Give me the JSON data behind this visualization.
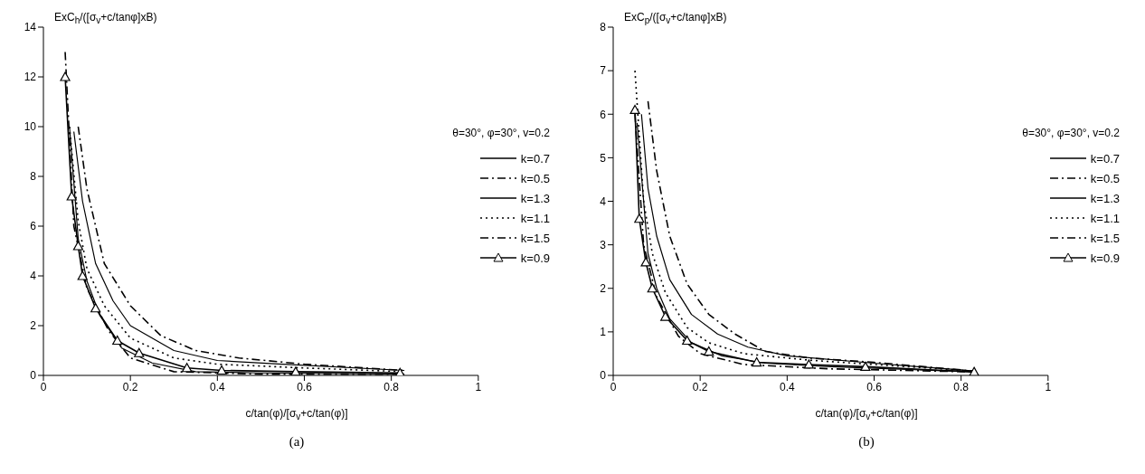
{
  "chart_data": [
    {
      "type": "line",
      "ylabel": "ExC$_{h}$/([σ$_{v}$+c/tanφ]xB)",
      "xlabel": "c/tan(φ)/[σ$_{v}$+c/tan(φ)]",
      "annotations": [
        "θ=30°, φ=30°, v=0.2",
        "(a)"
      ],
      "xlim": [
        0,
        1
      ],
      "xticks": [
        0,
        0.2,
        0.4,
        0.6,
        0.8,
        1
      ],
      "ylim": [
        0,
        14
      ],
      "yticks": [
        0,
        2,
        4,
        6,
        8,
        10,
        12,
        14
      ],
      "grid": false,
      "legend": "right",
      "series": [
        {
          "name": "k=0.7",
          "color": "#000000",
          "line_style": "solid",
          "marker": "none",
          "x": [
            0.06,
            0.08,
            0.1,
            0.13,
            0.18,
            0.25,
            0.35,
            0.5,
            0.83
          ],
          "values": [
            10,
            5.5,
            3.8,
            2.4,
            1.1,
            0.5,
            0.15,
            0.1,
            0.05
          ]
        },
        {
          "name": "k=0.5",
          "color": "#000000",
          "line_style": "dashed",
          "marker": "none",
          "x": [
            0.05,
            0.07,
            0.1,
            0.15,
            0.2,
            0.3,
            0.5,
            0.83
          ],
          "values": [
            13,
            6,
            3.5,
            1.8,
            0.7,
            0.15,
            0.05,
            0.05
          ]
        },
        {
          "name": "k=1.3",
          "color": "#000000",
          "line_style": "solid",
          "marker": "none",
          "x": [
            0.07,
            0.09,
            0.12,
            0.16,
            0.2,
            0.3,
            0.4,
            0.55,
            0.83
          ],
          "values": [
            9.8,
            7,
            4.5,
            3,
            2,
            1,
            0.6,
            0.45,
            0.2
          ]
        },
        {
          "name": "k=1.1",
          "color": "#000000",
          "line_style": "dotted",
          "marker": "none",
          "x": [
            0.06,
            0.08,
            0.1,
            0.14,
            0.2,
            0.3,
            0.4,
            0.6,
            0.83
          ],
          "values": [
            10,
            6.2,
            4.3,
            2.8,
            1.5,
            0.7,
            0.45,
            0.3,
            0.15
          ]
        },
        {
          "name": "k=1.5",
          "color": "#000000",
          "line_style": "dashed",
          "marker": "none",
          "x": [
            0.08,
            0.1,
            0.14,
            0.2,
            0.27,
            0.35,
            0.45,
            0.6,
            0.83
          ],
          "values": [
            10,
            7.5,
            4.5,
            2.8,
            1.6,
            1,
            0.7,
            0.45,
            0.2
          ]
        },
        {
          "name": "k=0.9",
          "color": "#000000",
          "line_style": "solid",
          "marker": "triangle",
          "x": [
            0.05,
            0.065,
            0.08,
            0.09,
            0.12,
            0.17,
            0.22,
            0.33,
            0.41,
            0.58,
            0.82
          ],
          "values": [
            12,
            7.2,
            5.2,
            4,
            2.7,
            1.4,
            0.9,
            0.3,
            0.2,
            0.15,
            0.1
          ]
        }
      ]
    },
    {
      "type": "line",
      "ylabel": "ExC$_{p}$/([σ$_{v}$+c/tanφ]xB)",
      "xlabel": "c/tan(φ)/[σ$_{v}$+c/tan(φ)]",
      "annotations": [
        "θ=30°, φ=30°, v=0.2",
        "(b)"
      ],
      "xlim": [
        0,
        1
      ],
      "xticks": [
        0,
        0.2,
        0.4,
        0.6,
        0.8,
        1
      ],
      "ylim": [
        0,
        8
      ],
      "yticks": [
        0,
        1,
        2,
        3,
        4,
        5,
        6,
        7,
        8
      ],
      "grid": false,
      "legend": "right",
      "series": [
        {
          "name": "k=0.7",
          "color": "#000000",
          "line_style": "solid",
          "marker": "none",
          "x": [
            0.055,
            0.08,
            0.1,
            0.13,
            0.18,
            0.25,
            0.35,
            0.5,
            0.83
          ],
          "values": [
            5.8,
            2.8,
            2,
            1.3,
            0.75,
            0.45,
            0.28,
            0.2,
            0.08
          ]
        },
        {
          "name": "k=0.5",
          "color": "#000000",
          "line_style": "dashed",
          "marker": "none",
          "x": [
            0.05,
            0.07,
            0.1,
            0.15,
            0.2,
            0.3,
            0.5,
            0.83
          ],
          "values": [
            6,
            3,
            1.8,
            0.9,
            0.5,
            0.25,
            0.15,
            0.08
          ]
        },
        {
          "name": "k=1.3",
          "color": "#000000",
          "line_style": "solid",
          "marker": "none",
          "x": [
            0.065,
            0.08,
            0.1,
            0.13,
            0.18,
            0.24,
            0.31,
            0.4,
            0.6,
            0.83
          ],
          "values": [
            6,
            4.3,
            3.2,
            2.2,
            1.4,
            0.95,
            0.65,
            0.45,
            0.28,
            0.1
          ]
        },
        {
          "name": "k=1.1",
          "color": "#000000",
          "line_style": "dotted",
          "marker": "none",
          "x": [
            0.05,
            0.07,
            0.09,
            0.12,
            0.17,
            0.22,
            0.3,
            0.45,
            0.6,
            0.83
          ],
          "values": [
            7,
            4,
            2.8,
            1.9,
            1.1,
            0.75,
            0.5,
            0.35,
            0.25,
            0.1
          ]
        },
        {
          "name": "k=1.5",
          "color": "#000000",
          "line_style": "dashed",
          "marker": "none",
          "x": [
            0.08,
            0.1,
            0.13,
            0.17,
            0.22,
            0.28,
            0.35,
            0.45,
            0.6,
            0.83
          ],
          "values": [
            6.3,
            4.7,
            3.2,
            2.1,
            1.4,
            0.95,
            0.55,
            0.4,
            0.3,
            0.1
          ]
        },
        {
          "name": "k=0.9",
          "color": "#000000",
          "line_style": "solid",
          "marker": "triangle",
          "x": [
            0.05,
            0.06,
            0.075,
            0.09,
            0.12,
            0.17,
            0.22,
            0.33,
            0.45,
            0.58,
            0.83
          ],
          "values": [
            6.1,
            3.6,
            2.6,
            2,
            1.35,
            0.8,
            0.55,
            0.3,
            0.25,
            0.2,
            0.08
          ]
        }
      ]
    }
  ]
}
